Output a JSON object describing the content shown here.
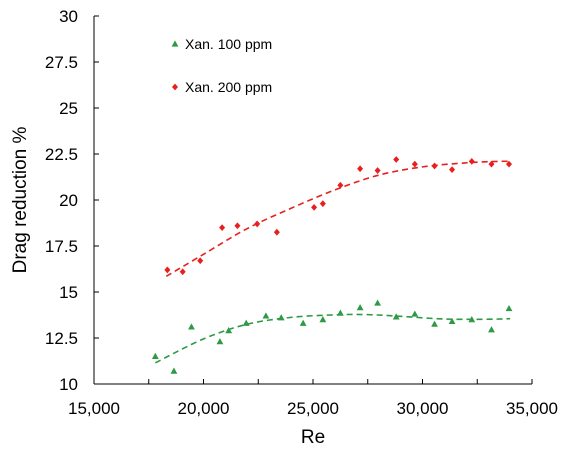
{
  "chart_data": {
    "type": "scatter",
    "title": "",
    "xlabel": "Re",
    "ylabel": "Drag reduction %",
    "xlim": [
      15000,
      35000
    ],
    "ylim": [
      10,
      30
    ],
    "x_ticks": [
      15000,
      20000,
      25000,
      30000,
      35000
    ],
    "x_tick_labels": [
      "15,000",
      "20,000",
      "25,000",
      "30,000",
      "35,000"
    ],
    "y_ticks": [
      10,
      12.5,
      15,
      17.5,
      20,
      22.5,
      25,
      27.5,
      30
    ],
    "y_tick_labels": [
      "10",
      "12.5",
      "15",
      "17.5",
      "20",
      "22.5",
      "25",
      "27.5",
      "30"
    ],
    "grid": false,
    "legend_position": "top-left",
    "series": [
      {
        "name": "Xan. 100 ppm",
        "marker": "triangle",
        "color": "#2e9a45",
        "x": [
          17800,
          18650,
          19450,
          20750,
          21150,
          21950,
          22850,
          23550,
          24550,
          25450,
          26250,
          27150,
          27950,
          28800,
          29650,
          30550,
          31350,
          32250,
          33150,
          33950
        ],
        "y": [
          11.5,
          10.7,
          13.1,
          12.3,
          12.9,
          13.3,
          13.7,
          13.6,
          13.3,
          13.5,
          13.85,
          14.15,
          14.4,
          13.65,
          13.8,
          13.25,
          13.4,
          13.5,
          12.95,
          14.1
        ],
        "trend": {
          "style": "dashed",
          "x": [
            17800,
            20000,
            22000,
            24000,
            26000,
            27500,
            29000,
            31000,
            33000,
            34000
          ],
          "y": [
            11.15,
            12.45,
            13.25,
            13.62,
            13.76,
            13.77,
            13.68,
            13.53,
            13.52,
            13.55
          ]
        }
      },
      {
        "name": "Xan. 200 ppm",
        "marker": "diamond",
        "color": "#e8201d",
        "x": [
          18350,
          19050,
          19850,
          20850,
          21550,
          22450,
          23350,
          25050,
          25450,
          26250,
          27150,
          27950,
          28800,
          29650,
          30550,
          31350,
          32250,
          33150,
          33950
        ],
        "y": [
          16.2,
          16.1,
          16.7,
          18.5,
          18.6,
          18.7,
          18.25,
          19.6,
          19.8,
          20.8,
          21.7,
          21.6,
          22.2,
          21.95,
          21.85,
          21.65,
          22.1,
          21.95,
          21.95
        ],
        "trend": {
          "style": "dashed",
          "x": [
            18300,
            20000,
            22000,
            24000,
            26000,
            28000,
            30000,
            32000,
            33500,
            34000
          ],
          "y": [
            15.85,
            17.05,
            18.45,
            19.55,
            20.55,
            21.35,
            21.8,
            22.02,
            22.1,
            22.1
          ]
        }
      }
    ]
  }
}
